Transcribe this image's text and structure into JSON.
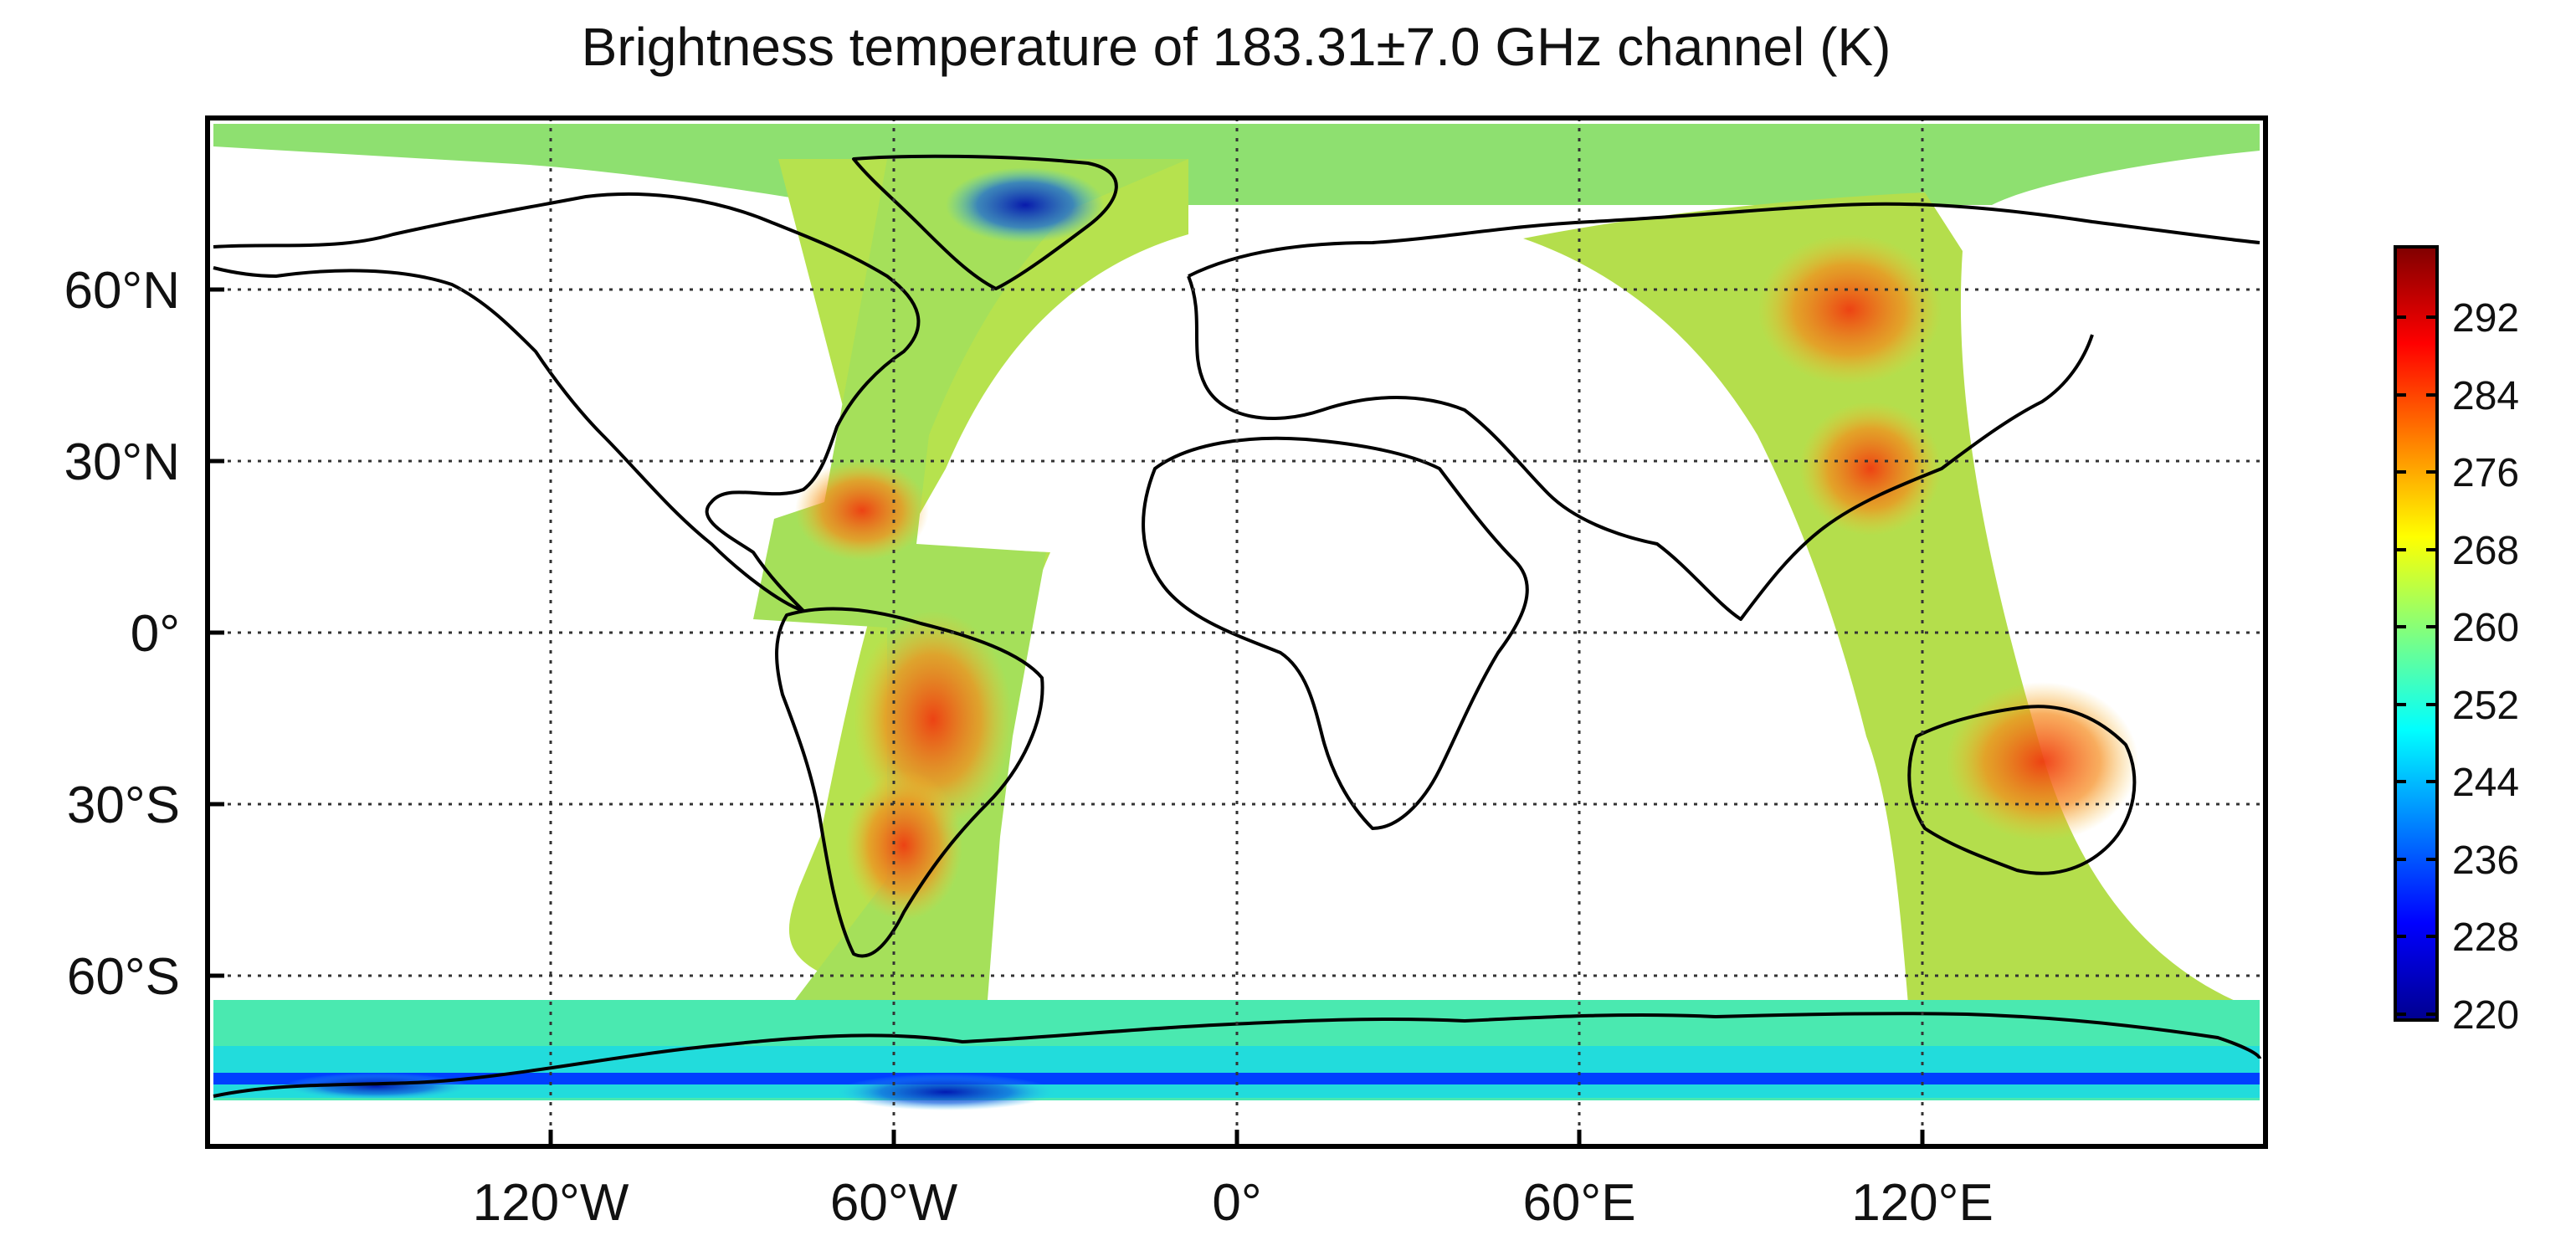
{
  "title": "Brightness temperature of 183.31±7.0 GHz channel (K)",
  "map": {
    "projection": "equirectangular",
    "lon_range": [
      -180,
      180
    ],
    "lat_range": [
      -90,
      90
    ],
    "grid": "dotted",
    "lat_ticks": [
      {
        "value": 60,
        "label": "60°N"
      },
      {
        "value": 30,
        "label": "30°N"
      },
      {
        "value": 0,
        "label": "0°"
      },
      {
        "value": -30,
        "label": "30°S"
      },
      {
        "value": -60,
        "label": "60°S"
      }
    ],
    "lon_ticks": [
      {
        "value": -120,
        "label": "120°W"
      },
      {
        "value": -60,
        "label": "60°W"
      },
      {
        "value": 0,
        "label": "0°"
      },
      {
        "value": 60,
        "label": "60°E"
      },
      {
        "value": 120,
        "label": "120°E"
      }
    ]
  },
  "colorbar": {
    "colormap": "jet",
    "range": [
      220,
      300
    ],
    "placement": "right",
    "ticks": [
      292,
      284,
      276,
      268,
      260,
      252,
      244,
      236,
      228,
      220
    ]
  }
}
